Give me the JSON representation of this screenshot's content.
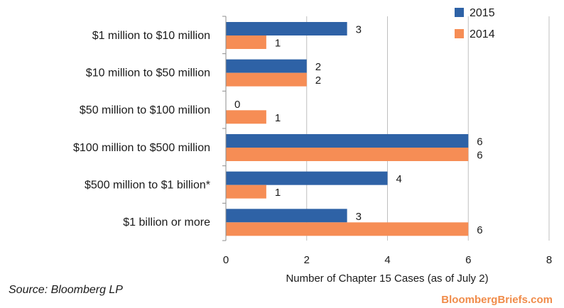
{
  "chart_data": {
    "type": "bar",
    "orientation": "horizontal",
    "categories": [
      "$1 million to $10 million",
      "$10 million to $50 million",
      "$50 million to $100 million",
      "$100 million to $500 million",
      "$500 million to $1 billion*",
      "$1 billion or more"
    ],
    "series": [
      {
        "name": "2015",
        "color": "#2e62a6",
        "values": [
          3,
          2,
          0,
          6,
          4,
          3
        ]
      },
      {
        "name": "2014",
        "color": "#f68d55",
        "values": [
          1,
          2,
          1,
          6,
          1,
          6
        ]
      }
    ],
    "xlabel": "Number of Chapter 15 Cases (as of July 2)",
    "xlim": [
      0,
      8
    ],
    "xticks": [
      "0",
      "2",
      "4",
      "6",
      "8"
    ],
    "grid": true,
    "legend": "top-right"
  },
  "footer": {
    "source": "Source: Bloomberg LP",
    "brand": "BloombergBriefs.com"
  }
}
